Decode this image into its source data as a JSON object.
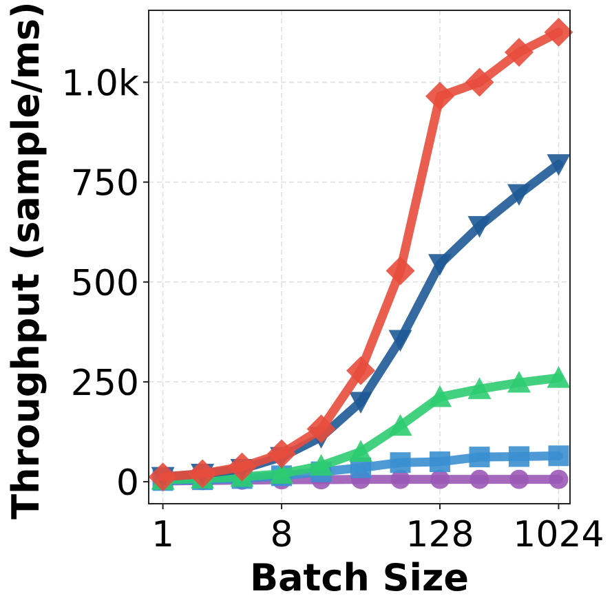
{
  "chart_data": {
    "type": "line",
    "title": "",
    "xlabel": "Batch Size",
    "ylabel": "Throughput (sample/ms)",
    "xscale": "log2",
    "x": [
      1,
      2,
      4,
      8,
      16,
      32,
      64,
      128,
      256,
      512,
      1024
    ],
    "xlim": [
      0.78,
      1250
    ],
    "ylim": [
      -55,
      1180
    ],
    "xticks": [
      1,
      8,
      128,
      1024
    ],
    "xtick_labels": [
      "1",
      "8",
      "128",
      "1024"
    ],
    "yticks": [
      0,
      250,
      500,
      750,
      1000
    ],
    "ytick_labels": [
      "0",
      "250",
      "500",
      "750",
      "1.0k"
    ],
    "grid": true,
    "series": [
      {
        "name": "purple-circle",
        "color": "#9b59b6",
        "marker": "circle",
        "values": [
          2,
          3,
          4,
          5,
          5,
          6,
          6,
          6,
          6,
          6,
          6
        ]
      },
      {
        "name": "blue-square",
        "color": "#3a8fd0",
        "marker": "square",
        "values": [
          3,
          5,
          8,
          15,
          25,
          35,
          48,
          50,
          62,
          63,
          65
        ]
      },
      {
        "name": "green-triangle-up",
        "color": "#2ecc71",
        "marker": "triangle-up",
        "values": [
          5,
          8,
          12,
          20,
          40,
          75,
          140,
          212,
          232,
          248,
          260
        ]
      },
      {
        "name": "navy-triangle-down",
        "color": "#1f5a96",
        "marker": "triangle-down",
        "values": [
          12,
          20,
          32,
          62,
          112,
          200,
          355,
          545,
          640,
          720,
          795
        ]
      },
      {
        "name": "red-diamond",
        "color": "#e74c3c",
        "marker": "diamond",
        "values": [
          12,
          20,
          37,
          70,
          132,
          278,
          528,
          965,
          1000,
          1075,
          1125
        ]
      }
    ]
  }
}
